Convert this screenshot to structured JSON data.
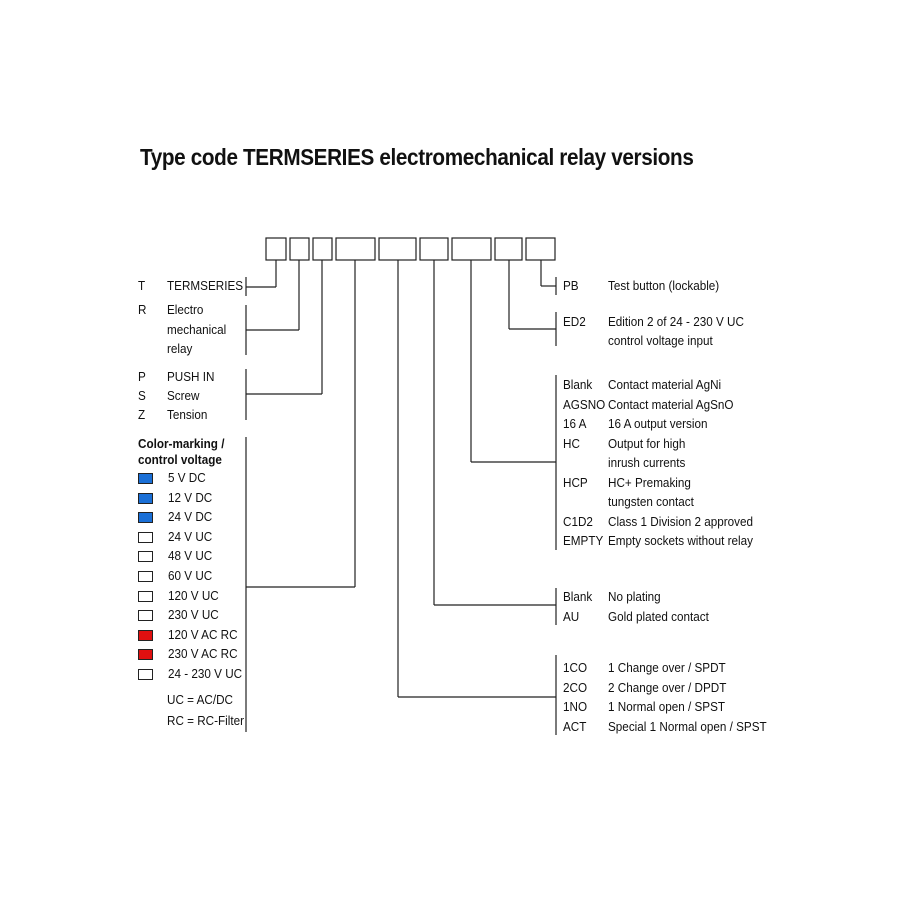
{
  "title": "Type code TERMSERIES electromechanical relay versions",
  "left": {
    "termseries": {
      "code": "T",
      "desc": "TERMSERIES"
    },
    "electro": {
      "code": "R",
      "lines": [
        "Electro",
        "mechanical",
        "relay"
      ]
    },
    "connection": [
      {
        "code": "P",
        "desc": "PUSH IN"
      },
      {
        "code": "S",
        "desc": "Screw"
      },
      {
        "code": "Z",
        "desc": "Tension"
      }
    ],
    "color_heading": [
      "Color-marking /",
      "control voltage"
    ],
    "colors": [
      {
        "label": "5 V DC",
        "color": "#1a6fd6"
      },
      {
        "label": "12 V DC",
        "color": "#1a6fd6"
      },
      {
        "label": "24 V DC",
        "color": "#1a6fd6"
      },
      {
        "label": "24 V UC",
        "color": "#ffffff"
      },
      {
        "label": "48 V UC",
        "color": "#ffffff"
      },
      {
        "label": "60 V UC",
        "color": "#ffffff"
      },
      {
        "label": "120 V UC",
        "color": "#ffffff"
      },
      {
        "label": "230 V UC",
        "color": "#ffffff"
      },
      {
        "label": "120 V AC RC",
        "color": "#e01010"
      },
      {
        "label": "230 V AC RC",
        "color": "#e01010"
      },
      {
        "label": "24 - 230 V UC",
        "color": "#ffffff"
      }
    ],
    "notes": [
      "UC = AC/DC",
      "RC = RC-Filter"
    ]
  },
  "right": {
    "pb": {
      "code": "PB",
      "desc": "Test button (lockable)"
    },
    "ed2": {
      "code": "ED2",
      "lines": [
        "Edition 2 of 24 - 230 V UC",
        "control voltage input"
      ]
    },
    "contacts": [
      {
        "code": "Blank",
        "lines": [
          "Contact material AgNi"
        ]
      },
      {
        "code": "AGSNO",
        "lines": [
          "Contact material AgSnO"
        ]
      },
      {
        "code": "16 A",
        "lines": [
          "16 A output version"
        ]
      },
      {
        "code": "HC",
        "lines": [
          "Output for high",
          "inrush currents"
        ]
      },
      {
        "code": "HCP",
        "lines": [
          "HC+ Premaking",
          "tungsten contact"
        ]
      },
      {
        "code": "C1D2",
        "lines": [
          "Class 1 Division 2 approved"
        ]
      },
      {
        "code": "EMPTY",
        "lines": [
          "Empty sockets without relay"
        ]
      }
    ],
    "plating": [
      {
        "code": "Blank",
        "desc": "No plating"
      },
      {
        "code": "AU",
        "desc": "Gold plated contact"
      }
    ],
    "config": [
      {
        "code": "1CO",
        "desc": "1 Change over / SPDT"
      },
      {
        "code": "2CO",
        "desc": "2 Change over / DPDT"
      },
      {
        "code": "1NO",
        "desc": "1 Normal open / SPST"
      },
      {
        "code": "ACT",
        "desc": "Special 1 Normal open / SPST"
      }
    ]
  }
}
